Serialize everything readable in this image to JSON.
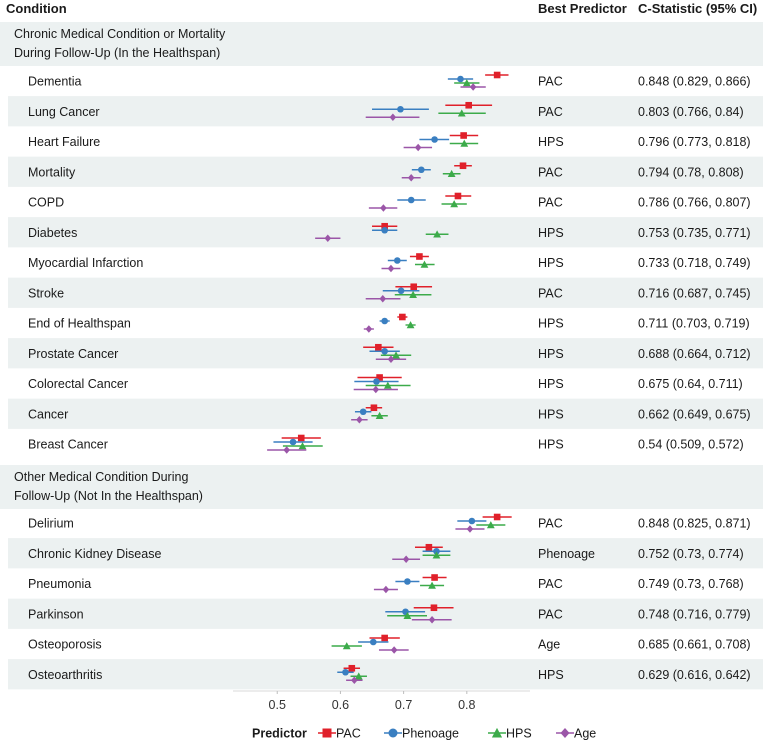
{
  "chart_data": {
    "type": "forest",
    "headers": {
      "condition": "Condition",
      "predictor": "Best Predictor",
      "cstat": "C-Statistic (95% CI)"
    },
    "xlim": [
      0.43,
      0.9
    ],
    "xticks": [
      0.5,
      0.6,
      0.7,
      0.8
    ],
    "xtick_labels": [
      "0.5",
      "0.6",
      "0.7",
      "0.8"
    ],
    "legend": {
      "title": "Predictor",
      "entries": [
        {
          "name": "PAC",
          "color": "#e0202a",
          "marker": "square"
        },
        {
          "name": "Phenoage",
          "color": "#3a7fc1",
          "marker": "circle"
        },
        {
          "name": "HPS",
          "color": "#3cab4a",
          "marker": "triangle"
        },
        {
          "name": "Age",
          "color": "#9b56a8",
          "marker": "diamond"
        }
      ]
    },
    "groups": [
      {
        "title_lines": [
          "Chronic Medical Condition or Mortality",
          "During Follow-Up (In the Healthspan)"
        ],
        "rows": [
          {
            "condition": "Dementia",
            "best": "PAC",
            "cstat": "0.848 (0.829, 0.866)",
            "estimates": [
              [
                0.848,
                0.829,
                0.866
              ],
              [
                0.79,
                0.77,
                0.81
              ],
              [
                0.8,
                0.78,
                0.82
              ],
              [
                0.81,
                0.79,
                0.83
              ]
            ]
          },
          {
            "condition": "Lung Cancer",
            "best": "PAC",
            "cstat": "0.803 (0.766, 0.84)",
            "estimates": [
              [
                0.803,
                0.766,
                0.84
              ],
              [
                0.695,
                0.65,
                0.74
              ],
              [
                0.792,
                0.755,
                0.83
              ],
              [
                0.683,
                0.64,
                0.725
              ]
            ]
          },
          {
            "condition": "Heart Failure",
            "best": "HPS",
            "cstat": "0.796 (0.773, 0.818)",
            "estimates": [
              [
                0.795,
                0.773,
                0.818
              ],
              [
                0.749,
                0.725,
                0.772
              ],
              [
                0.796,
                0.773,
                0.818
              ],
              [
                0.723,
                0.7,
                0.745
              ]
            ]
          },
          {
            "condition": "Mortality",
            "best": "PAC",
            "cstat": "0.794 (0.78, 0.808)",
            "estimates": [
              [
                0.794,
                0.78,
                0.808
              ],
              [
                0.728,
                0.713,
                0.743
              ],
              [
                0.776,
                0.762,
                0.79
              ],
              [
                0.712,
                0.697,
                0.727
              ]
            ]
          },
          {
            "condition": "COPD",
            "best": "PAC",
            "cstat": "0.786 (0.766, 0.807)",
            "estimates": [
              [
                0.786,
                0.766,
                0.807
              ],
              [
                0.712,
                0.69,
                0.735
              ],
              [
                0.78,
                0.76,
                0.8
              ],
              [
                0.668,
                0.645,
                0.69
              ]
            ]
          },
          {
            "condition": "Diabetes",
            "best": "HPS",
            "cstat": "0.753 (0.735, 0.771)",
            "estimates": [
              [
                0.67,
                0.65,
                0.69
              ],
              [
                0.67,
                0.65,
                0.69
              ],
              [
                0.753,
                0.735,
                0.771
              ],
              [
                0.58,
                0.56,
                0.6
              ]
            ]
          },
          {
            "condition": "Myocardial Infarction",
            "best": "HPS",
            "cstat": "0.733 (0.718, 0.749)",
            "estimates": [
              [
                0.725,
                0.71,
                0.74
              ],
              [
                0.69,
                0.675,
                0.705
              ],
              [
                0.733,
                0.718,
                0.749
              ],
              [
                0.68,
                0.665,
                0.695
              ]
            ]
          },
          {
            "condition": "Stroke",
            "best": "PAC",
            "cstat": "0.716 (0.687, 0.745)",
            "estimates": [
              [
                0.716,
                0.687,
                0.745
              ],
              [
                0.696,
                0.667,
                0.725
              ],
              [
                0.715,
                0.686,
                0.744
              ],
              [
                0.667,
                0.64,
                0.695
              ]
            ]
          },
          {
            "condition": "End of Healthspan",
            "best": "HPS",
            "cstat": "0.711 (0.703, 0.719)",
            "estimates": [
              [
                0.698,
                0.69,
                0.706
              ],
              [
                0.67,
                0.662,
                0.678
              ],
              [
                0.711,
                0.703,
                0.719
              ],
              [
                0.645,
                0.637,
                0.653
              ]
            ]
          },
          {
            "condition": "Prostate Cancer",
            "best": "HPS",
            "cstat": "0.688 (0.664, 0.712)",
            "estimates": [
              [
                0.66,
                0.636,
                0.684
              ],
              [
                0.67,
                0.646,
                0.694
              ],
              [
                0.688,
                0.664,
                0.712
              ],
              [
                0.68,
                0.656,
                0.704
              ]
            ]
          },
          {
            "condition": "Colorectal Cancer",
            "best": "HPS",
            "cstat": "0.675 (0.64, 0.711)",
            "estimates": [
              [
                0.662,
                0.627,
                0.697
              ],
              [
                0.657,
                0.622,
                0.692
              ],
              [
                0.675,
                0.64,
                0.711
              ],
              [
                0.656,
                0.621,
                0.691
              ]
            ]
          },
          {
            "condition": "Cancer",
            "best": "HPS",
            "cstat": "0.662 (0.649, 0.675)",
            "estimates": [
              [
                0.653,
                0.64,
                0.666
              ],
              [
                0.636,
                0.623,
                0.649
              ],
              [
                0.662,
                0.649,
                0.675
              ],
              [
                0.63,
                0.617,
                0.643
              ]
            ]
          },
          {
            "condition": "Breast Cancer",
            "best": "HPS",
            "cstat": "0.54 (0.509, 0.572)",
            "estimates": [
              [
                0.538,
                0.507,
                0.569
              ],
              [
                0.525,
                0.494,
                0.556
              ],
              [
                0.54,
                0.509,
                0.572
              ],
              [
                0.515,
                0.484,
                0.546
              ]
            ]
          }
        ]
      },
      {
        "title_lines": [
          "Other Medical Condition During",
          "Follow-Up (Not In the Healthspan)"
        ],
        "rows": [
          {
            "condition": "Delirium",
            "best": "PAC",
            "cstat": "0.848 (0.825, 0.871)",
            "estimates": [
              [
                0.848,
                0.825,
                0.871
              ],
              [
                0.808,
                0.785,
                0.831
              ],
              [
                0.838,
                0.815,
                0.861
              ],
              [
                0.805,
                0.782,
                0.828
              ]
            ]
          },
          {
            "condition": "Chronic Kidney Disease",
            "best": "Phenoage",
            "cstat": "0.752 (0.73, 0.774)",
            "estimates": [
              [
                0.74,
                0.718,
                0.762
              ],
              [
                0.752,
                0.73,
                0.774
              ],
              [
                0.752,
                0.73,
                0.774
              ],
              [
                0.704,
                0.682,
                0.726
              ]
            ]
          },
          {
            "condition": "Pneumonia",
            "best": "PAC",
            "cstat": "0.749 (0.73, 0.768)",
            "estimates": [
              [
                0.749,
                0.73,
                0.768
              ],
              [
                0.706,
                0.687,
                0.725
              ],
              [
                0.745,
                0.726,
                0.764
              ],
              [
                0.672,
                0.653,
                0.691
              ]
            ]
          },
          {
            "condition": "Parkinson",
            "best": "PAC",
            "cstat": "0.748 (0.716, 0.779)",
            "estimates": [
              [
                0.748,
                0.716,
                0.779
              ],
              [
                0.703,
                0.671,
                0.734
              ],
              [
                0.706,
                0.674,
                0.737
              ],
              [
                0.745,
                0.713,
                0.776
              ]
            ]
          },
          {
            "condition": "Osteoporosis",
            "best": "Age",
            "cstat": "0.685 (0.661, 0.708)",
            "estimates": [
              [
                0.67,
                0.646,
                0.694
              ],
              [
                0.652,
                0.628,
                0.676
              ],
              [
                0.61,
                0.586,
                0.634
              ],
              [
                0.685,
                0.661,
                0.708
              ]
            ]
          },
          {
            "condition": "Osteoarthritis",
            "best": "HPS",
            "cstat": "0.629 (0.616, 0.642)",
            "estimates": [
              [
                0.618,
                0.605,
                0.631
              ],
              [
                0.608,
                0.595,
                0.621
              ],
              [
                0.629,
                0.616,
                0.642
              ],
              [
                0.622,
                0.609,
                0.635
              ]
            ]
          }
        ]
      }
    ]
  }
}
